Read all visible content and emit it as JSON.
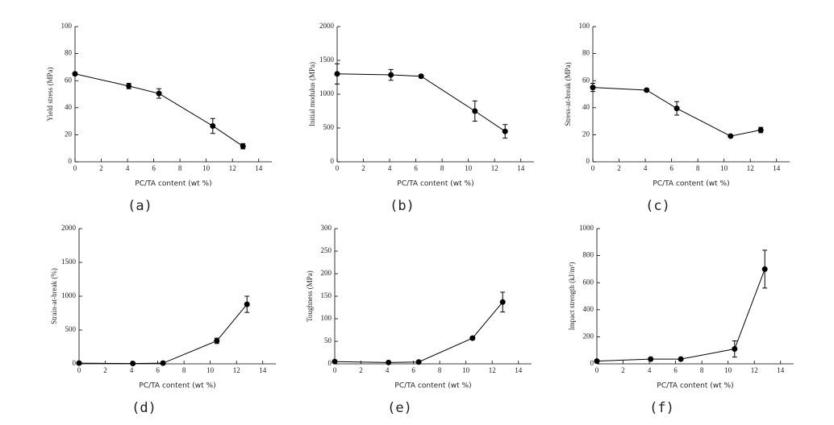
{
  "chart_data": [
    {
      "type": "line",
      "caption": "(a)",
      "xlabel": "PC/TA content (wt %)",
      "ylabel": "Yield stress (MPa)",
      "x": [
        0,
        4.1,
        6.4,
        10.5,
        12.8
      ],
      "values": [
        65,
        56,
        50.5,
        26.5,
        11.5
      ],
      "errors": [
        1,
        2,
        3.5,
        5.5,
        2
      ],
      "xlim": [
        0,
        15
      ],
      "xticks": [
        0,
        2,
        4,
        6,
        8,
        10,
        12,
        14
      ],
      "ylim": [
        0,
        100
      ],
      "yticks": [
        0,
        20,
        40,
        60,
        80,
        100
      ],
      "color": "#000000"
    },
    {
      "type": "line",
      "caption": "(b)",
      "xlabel": "PC/TA content (wt %)",
      "ylabel": "Initial modulus (MPa)",
      "x": [
        0,
        4.1,
        6.4,
        10.5,
        12.8
      ],
      "values": [
        1300,
        1285,
        1265,
        750,
        450
      ],
      "errors": [
        150,
        80,
        20,
        150,
        100
      ],
      "xlim": [
        0,
        15
      ],
      "xticks": [
        0,
        2,
        4,
        6,
        8,
        10,
        12,
        14
      ],
      "ylim": [
        0,
        2000
      ],
      "yticks": [
        0,
        500,
        1000,
        1500,
        2000
      ],
      "color": "#000000"
    },
    {
      "type": "line",
      "caption": "(c)",
      "xlabel": "PC/TA content (wt %)",
      "ylabel": "Stress-at-break (MPa)",
      "x": [
        0,
        4.1,
        6.4,
        10.5,
        12.8
      ],
      "values": [
        55,
        53,
        39.5,
        19,
        23.5
      ],
      "errors": [
        3,
        1,
        5,
        1,
        2
      ],
      "xlim": [
        0,
        15
      ],
      "xticks": [
        0,
        2,
        4,
        6,
        8,
        10,
        12,
        14
      ],
      "ylim": [
        0,
        100
      ],
      "yticks": [
        0,
        20,
        40,
        60,
        80,
        100
      ],
      "color": "#000000"
    },
    {
      "type": "line",
      "caption": "(d)",
      "xlabel": "PC/TA content (wt %)",
      "ylabel": "Strain-at-break (%)",
      "x": [
        0,
        4.1,
        6.4,
        10.5,
        12.8
      ],
      "values": [
        10,
        5,
        10,
        340,
        880
      ],
      "errors": [
        5,
        3,
        5,
        40,
        120
      ],
      "xlim": [
        0,
        15
      ],
      "xticks": [
        0,
        2,
        4,
        6,
        8,
        10,
        12,
        14
      ],
      "ylim": [
        0,
        2000
      ],
      "yticks": [
        0,
        500,
        1000,
        1500,
        2000
      ],
      "color": "#000000"
    },
    {
      "type": "line",
      "caption": "(e)",
      "xlabel": "PC/TA content (wt %)",
      "ylabel": "Toughness (MPa)",
      "x": [
        0,
        4.1,
        6.4,
        10.5,
        12.8
      ],
      "values": [
        5,
        3,
        4,
        57,
        137
      ],
      "errors": [
        2,
        1,
        1,
        3,
        22
      ],
      "xlim": [
        0,
        15
      ],
      "xticks": [
        0,
        2,
        4,
        6,
        8,
        10,
        12,
        14
      ],
      "ylim": [
        0,
        300
      ],
      "yticks": [
        0,
        50,
        100,
        150,
        200,
        250,
        300
      ],
      "color": "#000000"
    },
    {
      "type": "line",
      "caption": "(f)",
      "xlabel": "PC/TA content (wt %)",
      "ylabel": "Impact strength (kJ/m²)",
      "x": [
        0,
        4.1,
        6.4,
        10.5,
        12.8
      ],
      "values": [
        20,
        35,
        35,
        110,
        700
      ],
      "errors": [
        5,
        5,
        5,
        60,
        140
      ],
      "xlim": [
        0,
        15
      ],
      "xticks": [
        0,
        2,
        4,
        6,
        8,
        10,
        12,
        14
      ],
      "ylim": [
        0,
        1000
      ],
      "yticks": [
        0,
        200,
        400,
        600,
        800,
        1000
      ],
      "color": "#000000"
    }
  ]
}
